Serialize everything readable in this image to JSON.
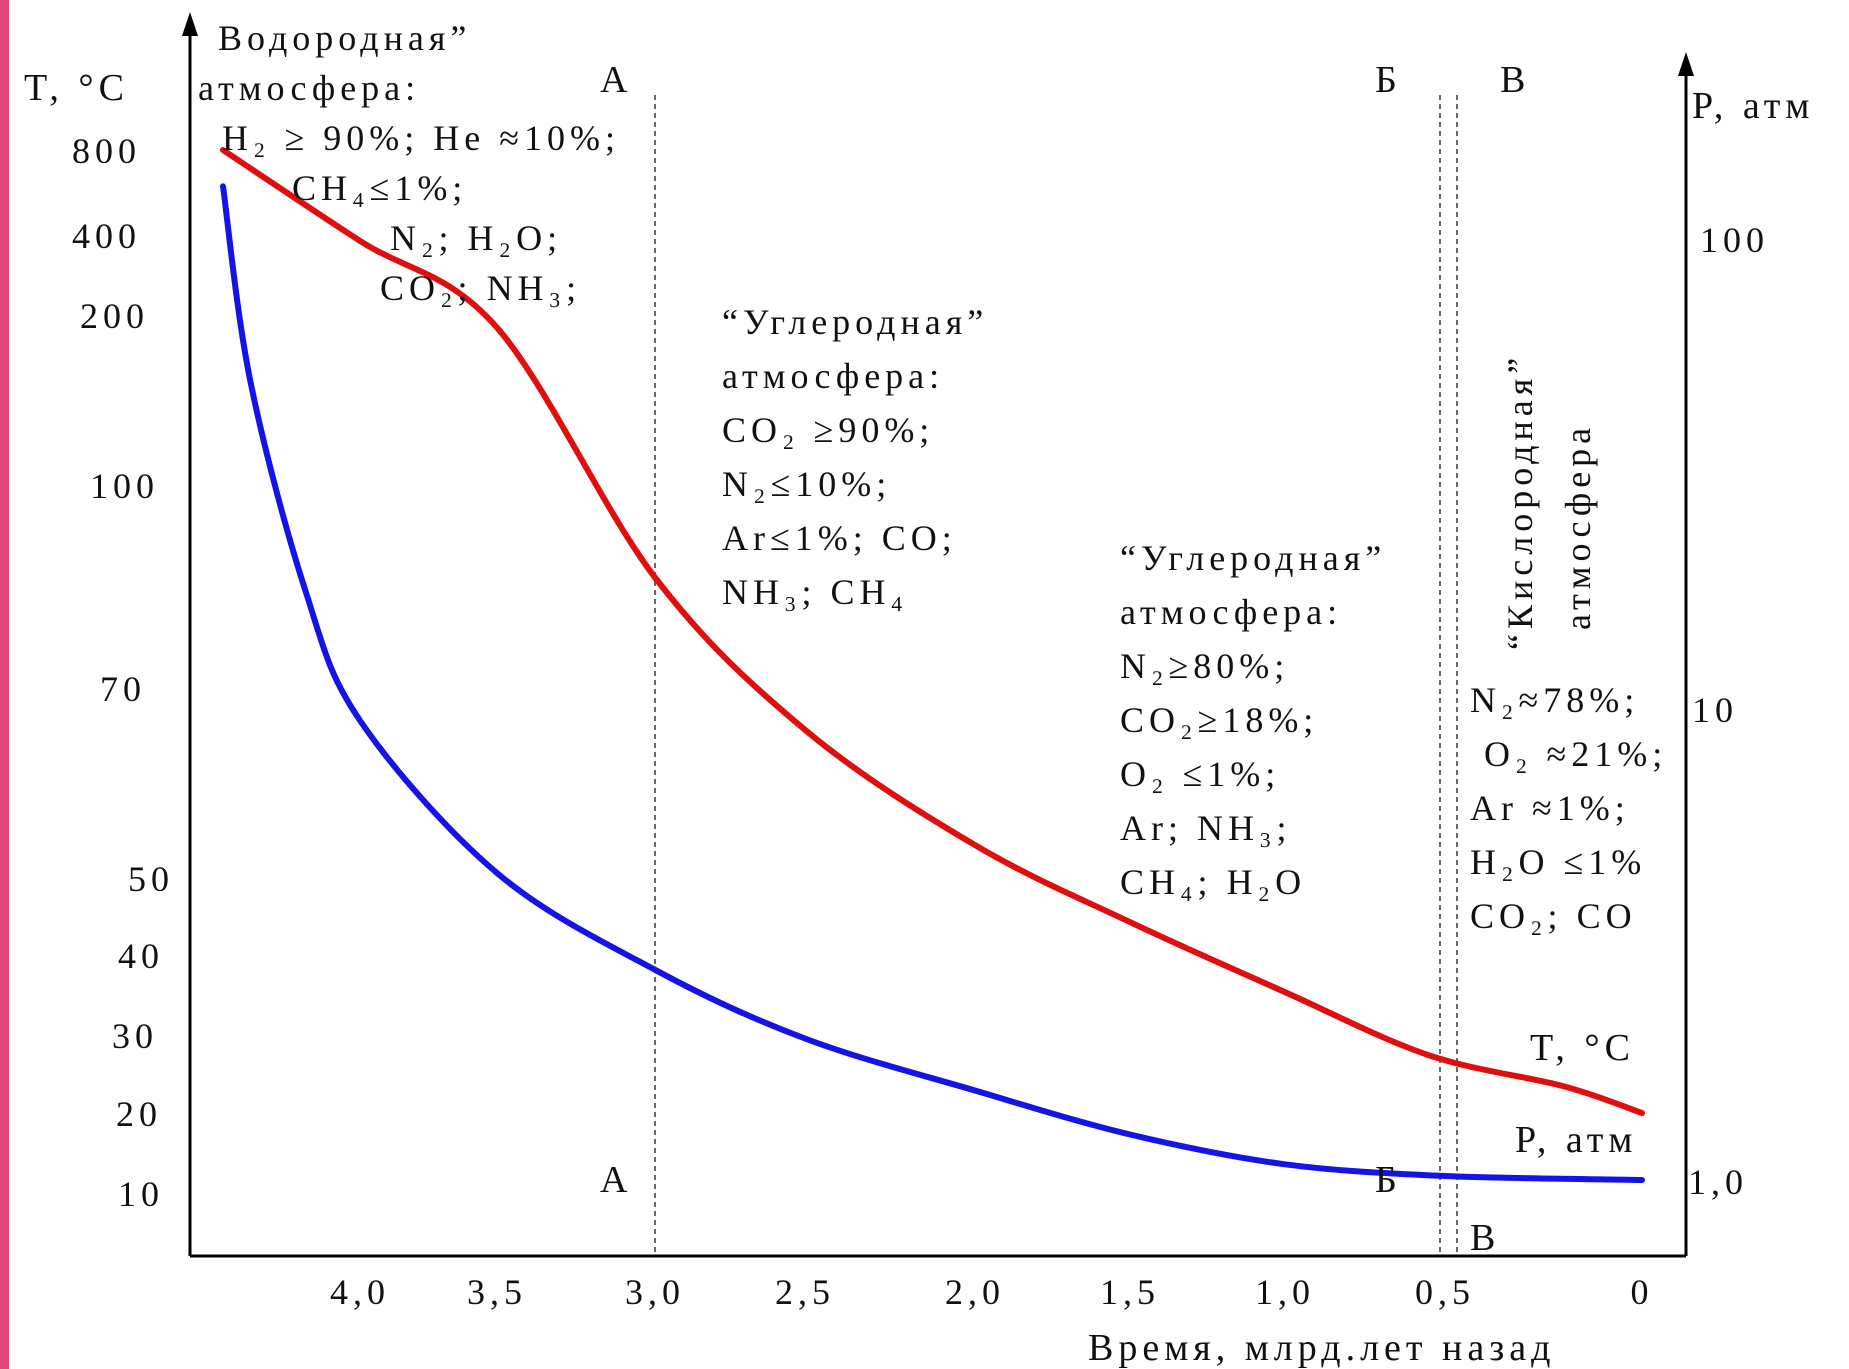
{
  "colors": {
    "temperature": "#e00f0f",
    "pressure": "#1414e6",
    "axis": "#000000",
    "frame": "#e0457b"
  },
  "chart_data": {
    "type": "line",
    "xlabel": "Время, млрд.лет назад",
    "x_ticks": [
      "4,0",
      "3,5",
      "3,0",
      "2,5",
      "2,0",
      "1,5",
      "1,0",
      "0,5",
      "0"
    ],
    "x_tick_values": [
      4.0,
      3.5,
      3.0,
      2.5,
      2.0,
      1.5,
      1.0,
      0.5,
      0
    ],
    "x_direction": "reversed",
    "y_left": {
      "label": "T, °C",
      "ticks": [
        "800",
        "400",
        "200",
        "100",
        "70",
        "50",
        "40",
        "30",
        "20",
        "10"
      ]
    },
    "y_right": {
      "label": "P, атм",
      "ticks": [
        "100",
        "10",
        "1,0"
      ]
    },
    "series": [
      {
        "name": "T, °C",
        "axis": "left",
        "x": [
          4.5,
          4.0,
          3.5,
          3.0,
          2.5,
          2.0,
          1.5,
          1.0,
          0.55,
          0.2,
          0
        ],
        "y": [
          800,
          380,
          190,
          85,
          65,
          53,
          44,
          35,
          27,
          23,
          20
        ]
      },
      {
        "name": "P, атм",
        "axis": "right",
        "x": [
          4.5,
          4.4,
          4.2,
          4.0,
          3.5,
          3.0,
          2.5,
          2.0,
          1.5,
          1.0,
          0.5,
          0
        ],
        "y": [
          130,
          50,
          18,
          9.5,
          4.5,
          2.8,
          2.0,
          1.55,
          1.25,
          1.08,
          1.02,
          1.0
        ]
      }
    ],
    "boundaries": [
      {
        "label": "А",
        "x": 3.0,
        "style": "dashed"
      },
      {
        "label": "Б",
        "x": 0.6,
        "style": "dashed"
      },
      {
        "label": "В",
        "x": 0.55,
        "style": "dashed"
      }
    ],
    "region_labels": {
      "hydrogen": [
        "Водородная”",
        "атмосфера:",
        "H₂ ≥ 90%; He ≈10%;",
        "CH₄≤1%;",
        "N₂; H₂O;",
        "CO₂; NH₃;"
      ],
      "carbon1": [
        "“Углеродная”",
        "атмосфера:",
        "CO₂ ≥90%;",
        "N₂≤10%;",
        "Ar≤1%; CO;",
        "NH₃; CH₄"
      ],
      "carbon2": [
        "“Углеродная”",
        "атмосфера:",
        "N₂≥80%;",
        "CO₂≥18%;",
        "O₂ ≤1%;",
        "Ar; NH₃;",
        "CH₄; H₂O"
      ],
      "oxygen_title": [
        "“Кислородная”",
        "атмосфера"
      ],
      "oxygen": [
        "N₂≈78%;",
        "O₂ ≈21%;",
        "Ar ≈1%;",
        "H₂O ≤1%",
        "CO₂; CO"
      ]
    },
    "grid": false,
    "legend": "inline labels"
  }
}
